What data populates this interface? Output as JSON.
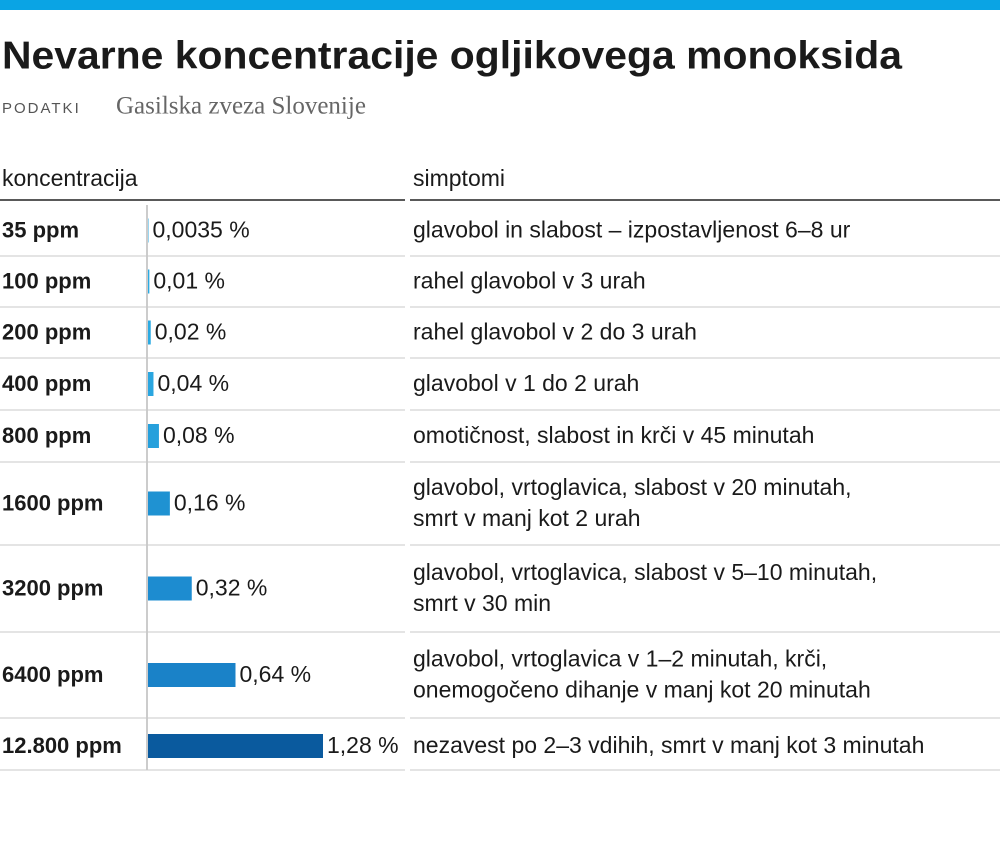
{
  "chart_data": {
    "type": "bar",
    "title": "Nevarne koncentracije ogljikovega monoksida",
    "source_label": "PODATKI",
    "source": "Gasilska zveza Slovenije",
    "column_headers": [
      "koncentracija",
      "simptomi"
    ],
    "categories": [
      "35 ppm",
      "100 ppm",
      "200 ppm",
      "400 ppm",
      "800 ppm",
      "1600 ppm",
      "3200 ppm",
      "6400 ppm",
      "12.800 ppm"
    ],
    "values": [
      0.0035,
      0.01,
      0.02,
      0.04,
      0.08,
      0.16,
      0.32,
      0.64,
      1.28
    ],
    "value_labels": [
      "0,0035 %",
      "0,01 %",
      "0,02 %",
      "0,04 %",
      "0,08 %",
      "0,16 %",
      "0,32 %",
      "0,64 %",
      "1,28 %"
    ],
    "colors": [
      "#2aaae2",
      "#2aaae2",
      "#2aaae2",
      "#2aa6e0",
      "#26a0dc",
      "#1f92d2",
      "#1d8cd0",
      "#1a82c8",
      "#0a5a9e"
    ],
    "symptoms": [
      [
        "glavobol in slabost – izpostavljenost 6–8 ur"
      ],
      [
        "rahel glavobol v 3 urah"
      ],
      [
        "rahel glavobol v 2 do 3 urah"
      ],
      [
        "glavobol v 1 do 2 urah"
      ],
      [
        "omotičnost, slabost in krči v 45 minutah"
      ],
      [
        "glavobol, vrtoglavica, slabost v 20 minutah,",
        "smrt v manj kot 2 urah"
      ],
      [
        "glavobol, vrtoglavica, slabost v 5–10 minutah,",
        "smrt v 30 min"
      ],
      [
        "glavobol, vrtoglavica v 1–2 minutah, krči,",
        "onemogočeno dihanje v manj kot 20 minutah"
      ],
      [
        "nezavest po 2–3 vdihih, smrt v manj kot 3 minutah"
      ]
    ]
  }
}
